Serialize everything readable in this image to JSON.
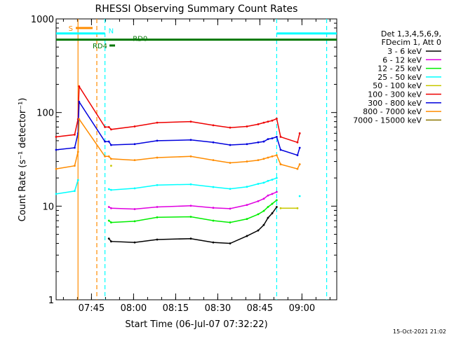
{
  "chart_data": {
    "type": "line",
    "title": "RHESSI Observing Summary Count Rates",
    "xlabel": "Start Time (06-Jul-07 07:32:22)",
    "ylabel": "Count Rate (s⁻¹ detector⁻¹)",
    "timestamp": "15-Oct-2021 21:02",
    "y_scale": "log",
    "ylim": [
      1,
      1000
    ],
    "x_unit": "minutes after 07:32:22",
    "xlim": [
      0,
      100
    ],
    "x_ticks": [
      {
        "label": "07:45",
        "x": 12.6
      },
      {
        "label": "08:00",
        "x": 27.6
      },
      {
        "label": "08:15",
        "x": 42.6
      },
      {
        "label": "08:30",
        "x": 57.6
      },
      {
        "label": "08:45",
        "x": 72.6
      },
      {
        "label": "09:00",
        "x": 87.6
      }
    ],
    "y_ticks": [
      {
        "label": "1",
        "v": 1
      },
      {
        "label": "10",
        "v": 10
      },
      {
        "label": "100",
        "v": 100
      },
      {
        "label": "1000",
        "v": 1000
      }
    ],
    "legend_header": [
      "Det 1,3,4,5,6,9,",
      "FDecim 1, Att 0"
    ],
    "legend_placement": "right",
    "series": [
      {
        "name": "3 - 6 keV",
        "color": "#000000",
        "x": [
          0,
          6.6,
          7.8,
          8.2,
          17.4,
          18.8,
          19.6,
          28,
          36,
          48,
          56,
          62,
          68,
          72,
          74,
          75.5,
          77,
          78.6,
          80,
          86,
          86.8
        ],
        "y": [
          null,
          null,
          null,
          null,
          null,
          4.5,
          4.2,
          4.1,
          4.4,
          4.5,
          4.1,
          4.0,
          4.8,
          5.5,
          6.3,
          7.5,
          8.4,
          9.8,
          null,
          null,
          null
        ]
      },
      {
        "name": "6 - 12 keV",
        "color": "#e000e0",
        "x": [
          0,
          6.6,
          7.8,
          8.2,
          17.4,
          18.8,
          19.6,
          28,
          36,
          48,
          56,
          62,
          68,
          72,
          74,
          75.5,
          77,
          78.6,
          80,
          86,
          86.8
        ],
        "y": [
          null,
          null,
          null,
          null,
          null,
          9.8,
          9.5,
          9.3,
          9.8,
          10.1,
          9.6,
          9.4,
          10.3,
          11.3,
          12.0,
          13.0,
          13.5,
          14.2,
          null,
          null,
          null
        ]
      },
      {
        "name": "12 - 25 keV",
        "color": "#00ee00",
        "x": [
          0,
          6.6,
          7.8,
          8.2,
          17.4,
          18.8,
          19.6,
          28,
          36,
          48,
          56,
          62,
          68,
          72,
          74,
          75.5,
          77,
          78.6,
          80,
          86,
          86.8
        ],
        "y": [
          null,
          null,
          null,
          null,
          null,
          7.0,
          6.7,
          6.9,
          7.6,
          7.7,
          7.0,
          6.7,
          7.3,
          8.2,
          8.9,
          9.8,
          10.6,
          11.6,
          null,
          null,
          null
        ]
      },
      {
        "name": "25 - 50 keV",
        "color": "#00ffff",
        "x": [
          0,
          6.6,
          7.8,
          8.2,
          17.4,
          18.8,
          19.6,
          28,
          36,
          48,
          56,
          62,
          68,
          72,
          74,
          75.5,
          77,
          78.6,
          80,
          86,
          86.8
        ],
        "y": [
          13.5,
          14.5,
          19,
          null,
          null,
          15.2,
          14.9,
          15.5,
          16.8,
          17.1,
          16.0,
          15.3,
          16.1,
          17.3,
          17.8,
          18.6,
          19.2,
          20.0,
          null,
          null,
          12.8
        ]
      },
      {
        "name": "50 - 100 keV",
        "color": "#c8c800",
        "x": [
          0,
          6.6,
          7.8,
          8.2,
          17.4,
          18.8,
          19.6,
          28,
          36,
          48,
          56,
          62,
          68,
          72,
          74,
          75.5,
          77,
          78.6,
          80,
          86,
          86.8
        ],
        "y": [
          null,
          null,
          null,
          null,
          null,
          null,
          27,
          null,
          null,
          null,
          null,
          null,
          null,
          null,
          null,
          null,
          null,
          null,
          9.5,
          9.5,
          null
        ]
      },
      {
        "name": "100 - 300 keV",
        "color": "#ee0000",
        "x": [
          0,
          6.6,
          7.8,
          8.2,
          17.4,
          18.8,
          19.6,
          28,
          36,
          48,
          56,
          62,
          68,
          72,
          74,
          75.5,
          77,
          78.6,
          80,
          86,
          86.8
        ],
        "y": [
          55,
          58,
          85,
          190,
          70,
          70,
          66,
          71,
          78,
          80,
          73,
          69,
          71,
          75,
          78,
          80,
          82,
          86,
          55,
          48,
          60
        ]
      },
      {
        "name": "300 - 800 keV",
        "color": "#0000dd",
        "x": [
          0,
          6.6,
          7.8,
          8.2,
          17.4,
          18.8,
          19.6,
          28,
          36,
          48,
          56,
          62,
          68,
          72,
          74,
          75.5,
          77,
          78.6,
          80,
          86,
          86.8
        ],
        "y": [
          40,
          42,
          60,
          130,
          49,
          49,
          45,
          46,
          50,
          51,
          48,
          45,
          46,
          48,
          49,
          52,
          53,
          55,
          40,
          35,
          42
        ]
      },
      {
        "name": "800 - 7000 keV",
        "color": "#ff8c00",
        "x": [
          0,
          6.6,
          7.8,
          8.2,
          17.4,
          18.8,
          19.6,
          28,
          36,
          48,
          56,
          62,
          68,
          72,
          74,
          75.5,
          77,
          78.6,
          80,
          86,
          86.8
        ],
        "y": [
          25,
          27,
          38,
          85,
          34,
          34,
          32,
          31,
          33,
          34,
          31,
          29,
          30,
          31,
          32,
          33,
          34,
          35,
          28,
          25,
          28
        ]
      },
      {
        "name": "7000 - 15000 keV",
        "color": "#8b7500",
        "x": [
          0,
          6.6,
          7.8,
          8.2,
          17.4,
          18.8,
          19.6,
          28,
          36,
          48,
          56,
          62,
          68,
          72,
          74,
          75.5,
          77,
          78.6,
          80,
          86,
          86.8
        ],
        "y": [
          null,
          null,
          null,
          null,
          null,
          null,
          null,
          null,
          null,
          null,
          null,
          null,
          null,
          null,
          null,
          null,
          null,
          null,
          null,
          null,
          null
        ]
      }
    ],
    "flag_bars": [
      {
        "label": "S",
        "color": "#ff8c00",
        "x_start": 7.0,
        "x_end": 13.0,
        "y": 800
      },
      {
        "label": "N",
        "color": "#00ffff",
        "x_start": 0,
        "x_end": 17.4,
        "y": 700
      },
      {
        "label": "N",
        "color": "#00ffff",
        "x_start": 78.6,
        "x_end": 100,
        "y": 700
      },
      {
        "label": "RD0",
        "color": "#007700",
        "x_start": 0,
        "x_end": 76.5,
        "y": 600
      },
      {
        "label": "RD0",
        "color": "#007700",
        "x_start": 76.5,
        "x_end": 100,
        "y": 600
      },
      {
        "label": "RD4",
        "color": "#007700",
        "x_start": 19.0,
        "x_end": 21.0,
        "y": 520
      }
    ],
    "event_markers": [
      {
        "color": "#ff8c00",
        "x": 7.8,
        "style": "solid"
      },
      {
        "color": "#ff8c00",
        "x": 14.5,
        "style": "dashed"
      },
      {
        "color": "#00ffff",
        "x": 17.4,
        "style": "dashed"
      },
      {
        "color": "#00ffff",
        "x": 78.6,
        "style": "dashed"
      },
      {
        "color": "#00ffff",
        "x": 96.4,
        "style": "dashed"
      }
    ]
  }
}
